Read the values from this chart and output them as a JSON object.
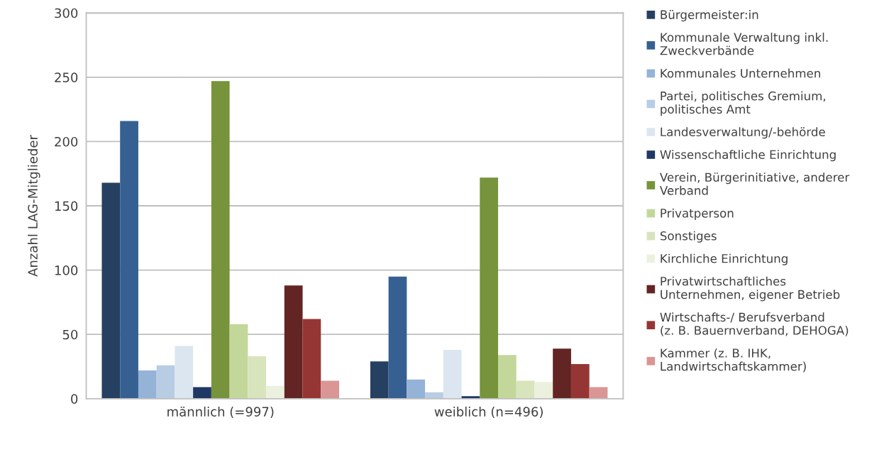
{
  "chart_data": {
    "type": "bar",
    "ylabel": "Anzahl LAG-Mitglieder",
    "categories": [
      "männlich (=997)",
      "weiblich (n=496)"
    ],
    "series": [
      {
        "name": "Bürgermeister:in",
        "color": "#264061",
        "values": [
          168,
          29
        ]
      },
      {
        "name": "Kommunale Verwaltung inkl.\nZweckverbände",
        "color": "#366092",
        "values": [
          216,
          95
        ]
      },
      {
        "name": "Kommunales Unternehmen",
        "color": "#95b3d7",
        "values": [
          22,
          15
        ]
      },
      {
        "name": "Partei, politisches Gremium,\npolitisches Amt",
        "color": "#b8cce4",
        "values": [
          26,
          5
        ]
      },
      {
        "name": "Landesverwaltung/-behörde",
        "color": "#dce6f1",
        "values": [
          41,
          38
        ]
      },
      {
        "name": "Wissenschaftliche Einrichtung",
        "color": "#1f3864",
        "values": [
          9,
          2
        ]
      },
      {
        "name": "Verein, Bürgerinitiative, anderer\nVerband",
        "color": "#77933c",
        "values": [
          247,
          172
        ]
      },
      {
        "name": "Privatperson",
        "color": "#c4d79b",
        "values": [
          58,
          34
        ]
      },
      {
        "name": "Sonstiges",
        "color": "#d8e4bc",
        "values": [
          33,
          14
        ]
      },
      {
        "name": "Kirchliche Einrichtung",
        "color": "#ebf1de",
        "values": [
          10,
          13
        ]
      },
      {
        "name": "Privatwirtschaftliches\nUnternehmen, eigener Betrieb",
        "color": "#632523",
        "values": [
          88,
          39
        ]
      },
      {
        "name": "Wirtschafts-/ Berufsverband\n(z. B. Bauernverband, DEHOGA)",
        "color": "#963634",
        "values": [
          62,
          27
        ]
      },
      {
        "name": "Kammer (z. B. IHK,\nLandwirtschaftskammer)",
        "color": "#da9694",
        "values": [
          14,
          9
        ]
      }
    ],
    "ylim": [
      0,
      300
    ],
    "yticks": [
      0,
      50,
      100,
      150,
      200,
      250,
      300
    ],
    "grid": "y",
    "legend": "right"
  }
}
